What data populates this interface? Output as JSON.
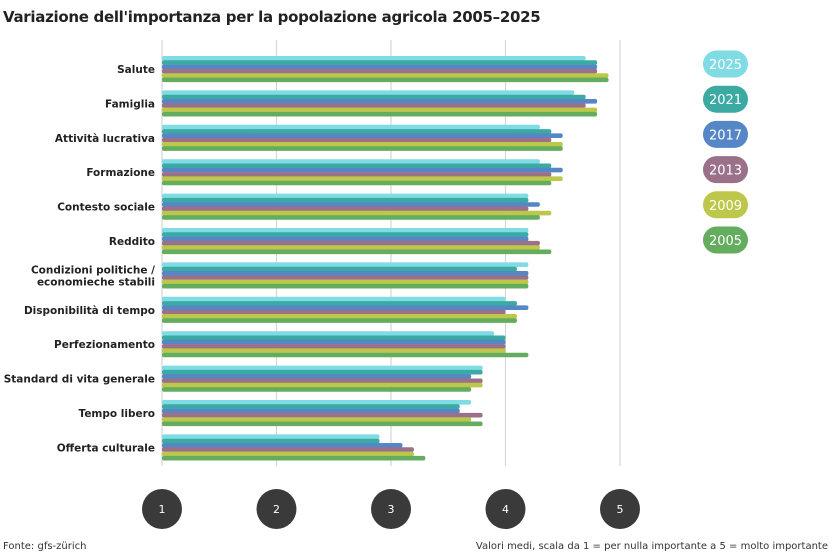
{
  "title": "Variazione dell'importanza per la popolazione agricola 2005–2025",
  "source": "Fonte: gfs-zürich",
  "note": "Valori medi, scala da 1 = per nulla importante a 5 = molto importante",
  "chart_data": {
    "type": "bar",
    "orientation": "horizontal",
    "title": "Variazione dell'importanza per la popolazione agricola 2005–2025",
    "xlim": [
      1,
      5
    ],
    "x_ticks": [
      "1",
      "2",
      "3",
      "4",
      "5"
    ],
    "grid": true,
    "legend_position": "right",
    "categories": [
      [
        "Salute"
      ],
      [
        "Famiglia"
      ],
      [
        "Attività lucrativa"
      ],
      [
        "Formazione"
      ],
      [
        "Contesto sociale"
      ],
      [
        "Reddito"
      ],
      [
        "Condizioni politiche /",
        "economieche stabili"
      ],
      [
        "Disponibilità di tempo"
      ],
      [
        "Perfezionamento"
      ],
      [
        "Standard di vita generale"
      ],
      [
        "Tempo libero"
      ],
      [
        "Offerta culturale"
      ]
    ],
    "series": [
      {
        "name": "2025",
        "color": "#7fdbe4",
        "values": [
          4.7,
          4.6,
          4.3,
          4.3,
          4.2,
          4.2,
          4.2,
          4.0,
          3.9,
          3.8,
          3.7,
          2.9
        ]
      },
      {
        "name": "2021",
        "color": "#3aaaa2",
        "values": [
          4.8,
          4.7,
          4.4,
          4.4,
          4.2,
          4.2,
          4.1,
          4.1,
          4.0,
          3.8,
          3.6,
          2.9
        ]
      },
      {
        "name": "2017",
        "color": "#5586c6",
        "values": [
          4.8,
          4.8,
          4.5,
          4.5,
          4.3,
          4.2,
          4.2,
          4.2,
          4.0,
          3.7,
          3.6,
          3.1
        ]
      },
      {
        "name": "2013",
        "color": "#9a7189",
        "values": [
          4.8,
          4.7,
          4.4,
          4.4,
          4.2,
          4.3,
          4.2,
          4.0,
          4.0,
          3.8,
          3.8,
          3.2
        ]
      },
      {
        "name": "2009",
        "color": "#bdc84a",
        "values": [
          4.9,
          4.8,
          4.5,
          4.5,
          4.4,
          4.3,
          4.2,
          4.1,
          4.0,
          3.8,
          3.7,
          3.2
        ]
      },
      {
        "name": "2005",
        "color": "#65ad5e",
        "values": [
          4.9,
          4.8,
          4.5,
          4.4,
          4.3,
          4.4,
          4.2,
          4.1,
          4.2,
          3.7,
          3.8,
          3.3
        ]
      }
    ]
  }
}
